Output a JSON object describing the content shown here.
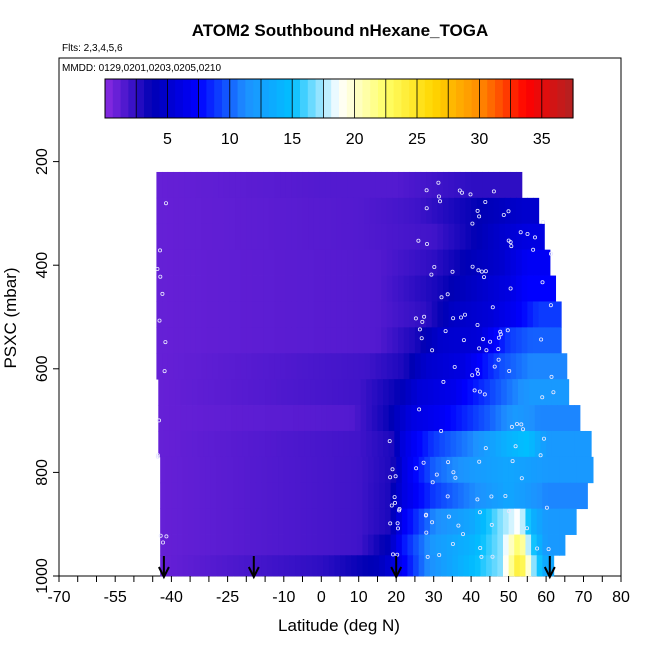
{
  "chart_data": {
    "type": "heatmap",
    "title": "ATOM2 Southbound nHexane_TOGA",
    "flights_label": "Flts: 2,3,4,5,6",
    "dates_label": "MMDD: 0129,0201,0203,0205,0210",
    "xlabel": "Latitude (deg N)",
    "ylabel": "PSXC (mbar)",
    "xlim": [
      -70,
      80
    ],
    "ylim": [
      1000,
      0
    ],
    "x_ticks": [
      -70,
      -55,
      -40,
      -25,
      -10,
      0,
      10,
      20,
      30,
      40,
      50,
      60,
      70,
      80
    ],
    "x_minor_step": 5,
    "y_ticks": [
      200,
      400,
      600,
      800,
      1000
    ],
    "colorbar": {
      "ticks": [
        5,
        10,
        15,
        20,
        25,
        30,
        35
      ],
      "range": [
        0,
        37.5
      ],
      "colors": [
        "#8a2be2",
        "#0000b4",
        "#0000ff",
        "#1e90ff",
        "#00bfff",
        "#ffffff",
        "#ffff66",
        "#ffd700",
        "#ff8c00",
        "#ff0000",
        "#b22222"
      ]
    },
    "arrows_lat": [
      -42,
      -18,
      20,
      61
    ],
    "bands": [
      {
        "pmin": 220,
        "pmax": 270,
        "values": [
          [
            -42,
            1
          ],
          [
            0,
            1.5
          ],
          [
            20,
            1.5
          ],
          [
            30,
            2
          ],
          [
            40,
            2.5
          ],
          [
            53,
            2.5
          ]
        ]
      },
      {
        "pmin": 270,
        "pmax": 320,
        "values": [
          [
            -42,
            1
          ],
          [
            10,
            1.5
          ],
          [
            25,
            2
          ],
          [
            35,
            3
          ],
          [
            45,
            4
          ],
          [
            54,
            5
          ],
          [
            57,
            5
          ]
        ]
      },
      {
        "pmin": 320,
        "pmax": 370,
        "values": [
          [
            -42,
            1
          ],
          [
            10,
            1.5
          ],
          [
            30,
            2
          ],
          [
            40,
            3.5
          ],
          [
            48,
            5
          ],
          [
            55,
            6
          ],
          [
            59,
            6
          ]
        ]
      },
      {
        "pmin": 370,
        "pmax": 420,
        "values": [
          [
            -42,
            1
          ],
          [
            15,
            1.5
          ],
          [
            30,
            2.5
          ],
          [
            40,
            4
          ],
          [
            48,
            5
          ],
          [
            55,
            7
          ],
          [
            60,
            7
          ]
        ]
      },
      {
        "pmin": 420,
        "pmax": 470,
        "values": [
          [
            -42,
            1
          ],
          [
            15,
            1.5
          ],
          [
            30,
            3
          ],
          [
            40,
            4.5
          ],
          [
            50,
            6
          ],
          [
            55,
            7.5
          ],
          [
            62,
            7.5
          ]
        ]
      },
      {
        "pmin": 470,
        "pmax": 520,
        "values": [
          [
            -42,
            1
          ],
          [
            15,
            1.5
          ],
          [
            28,
            2.5
          ],
          [
            35,
            4.5
          ],
          [
            45,
            5.5
          ],
          [
            52,
            7
          ],
          [
            58,
            9
          ],
          [
            63,
            9
          ]
        ]
      },
      {
        "pmin": 520,
        "pmax": 570,
        "values": [
          [
            -42,
            1
          ],
          [
            15,
            1.5
          ],
          [
            25,
            3
          ],
          [
            32,
            5
          ],
          [
            42,
            5.5
          ],
          [
            50,
            9
          ],
          [
            56,
            10
          ],
          [
            64,
            10
          ]
        ]
      },
      {
        "pmin": 570,
        "pmax": 620,
        "values": [
          [
            -42,
            1
          ],
          [
            12,
            2
          ],
          [
            22,
            3
          ],
          [
            28,
            5
          ],
          [
            38,
            6
          ],
          [
            48,
            9.5
          ],
          [
            56,
            11
          ],
          [
            65,
            11
          ]
        ]
      },
      {
        "pmin": 620,
        "pmax": 670,
        "values": [
          [
            -42,
            1
          ],
          [
            10,
            2
          ],
          [
            20,
            3.5
          ],
          [
            26,
            5.5
          ],
          [
            35,
            6.5
          ],
          [
            48,
            10
          ],
          [
            56,
            12
          ],
          [
            66,
            12
          ]
        ]
      },
      {
        "pmin": 670,
        "pmax": 720,
        "values": [
          [
            -42,
            1
          ],
          [
            8,
            1.5
          ],
          [
            18,
            3.5
          ],
          [
            24,
            6
          ],
          [
            32,
            7
          ],
          [
            45,
            10
          ],
          [
            52,
            12
          ],
          [
            58,
            11
          ],
          [
            68,
            11
          ]
        ]
      },
      {
        "pmin": 720,
        "pmax": 770,
        "values": [
          [
            -42,
            1
          ],
          [
            10,
            2
          ],
          [
            19,
            3
          ],
          [
            22,
            6
          ],
          [
            30,
            9
          ],
          [
            40,
            11
          ],
          [
            50,
            14
          ],
          [
            55,
            15
          ],
          [
            60,
            12
          ],
          [
            72,
            12
          ]
        ]
      },
      {
        "pmin": 770,
        "pmax": 820,
        "values": [
          [
            -42,
            1
          ],
          [
            10,
            2
          ],
          [
            19,
            3
          ],
          [
            22,
            6
          ],
          [
            30,
            10
          ],
          [
            40,
            12
          ],
          [
            50,
            13
          ],
          [
            60,
            12
          ],
          [
            72,
            12
          ]
        ]
      },
      {
        "pmin": 820,
        "pmax": 870,
        "values": [
          [
            -42,
            1
          ],
          [
            10,
            2
          ],
          [
            18,
            3
          ],
          [
            22,
            6
          ],
          [
            30,
            9
          ],
          [
            40,
            11
          ],
          [
            50,
            13
          ],
          [
            60,
            11
          ],
          [
            71,
            11
          ]
        ]
      },
      {
        "pmin": 870,
        "pmax": 920,
        "values": [
          [
            -42,
            1
          ],
          [
            10,
            2
          ],
          [
            18,
            3
          ],
          [
            22,
            7
          ],
          [
            30,
            11
          ],
          [
            40,
            13
          ],
          [
            48,
            17
          ],
          [
            53,
            19
          ],
          [
            56,
            14
          ],
          [
            60,
            12
          ],
          [
            68,
            12
          ]
        ]
      },
      {
        "pmin": 920,
        "pmax": 960,
        "values": [
          [
            -42,
            1
          ],
          [
            10,
            2
          ],
          [
            18,
            4
          ],
          [
            22,
            8
          ],
          [
            30,
            12
          ],
          [
            40,
            14
          ],
          [
            48,
            17
          ],
          [
            53,
            23
          ],
          [
            56,
            16
          ],
          [
            60,
            12
          ],
          [
            64,
            12
          ]
        ]
      },
      {
        "pmin": 960,
        "pmax": 1000,
        "values": [
          [
            -42,
            1
          ],
          [
            0,
            2.5
          ],
          [
            15,
            4
          ],
          [
            20,
            6
          ],
          [
            28,
            11
          ],
          [
            38,
            14
          ],
          [
            48,
            17
          ],
          [
            53,
            25
          ],
          [
            56,
            18
          ],
          [
            60,
            13
          ],
          [
            62,
            13
          ]
        ]
      }
    ],
    "band_left_lat": [
      -44,
      -44,
      -44,
      -44,
      -44,
      -44,
      -44,
      -44,
      -43.5,
      -43.5,
      -43.5,
      -43,
      -43,
      -43,
      -43,
      -43
    ]
  }
}
